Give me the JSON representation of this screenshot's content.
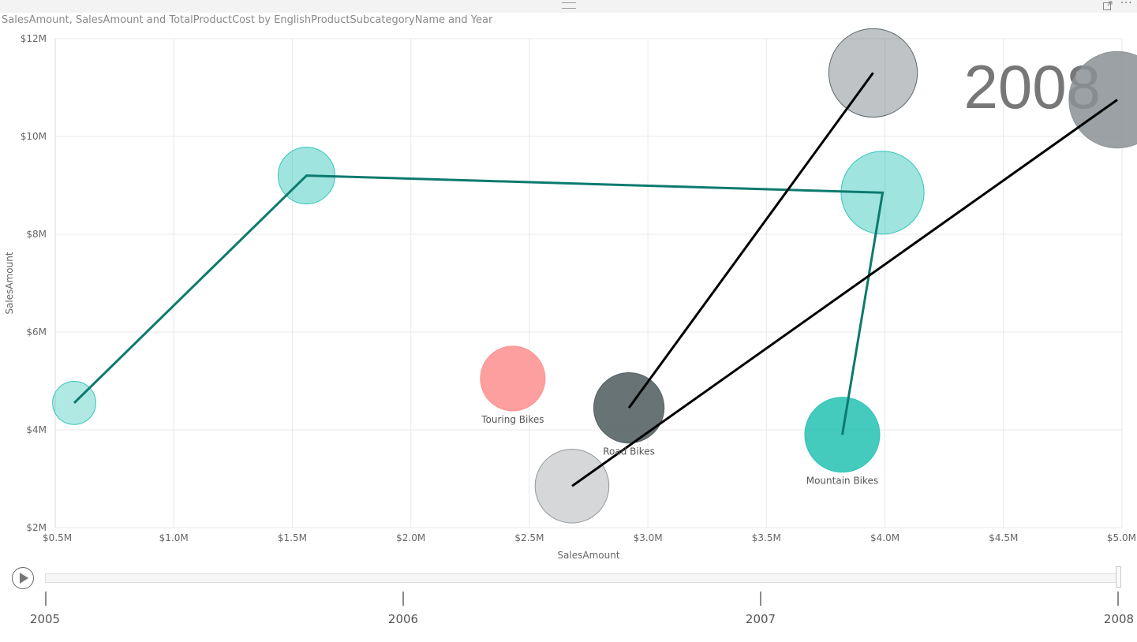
{
  "header": {
    "grip_icon": "drag-grip-icon",
    "focus_icon": "focus-mode-icon",
    "more_icon": "more-options-icon",
    "more_label": "···"
  },
  "chart_data": {
    "type": "scatter",
    "title": "SalesAmount, SalesAmount and TotalProductCost by EnglishProductSubcategoryName and Year",
    "xlabel": "SalesAmount",
    "ylabel": "SalesAmount",
    "xlim": [
      0.5,
      5.0
    ],
    "ylim": [
      2,
      12
    ],
    "x_ticks": [
      "$0.5M",
      "$1.0M",
      "$1.5M",
      "$2.0M",
      "$2.5M",
      "$3.0M",
      "$3.5M",
      "$4.0M",
      "$4.5M",
      "$5.0M"
    ],
    "y_ticks": [
      "$2M",
      "$4M",
      "$6M",
      "$8M",
      "$10M",
      "$12M"
    ],
    "grid": true,
    "play_axis_value": "2008",
    "size_field": "TotalProductCost",
    "series": [
      {
        "name": "Mountain Bikes",
        "color": "#24C1B3",
        "trail_color": "#0D7A6F",
        "label_visible": true,
        "points": [
          {
            "x": 0.58,
            "y": 4.55,
            "size": 0.38
          },
          {
            "x": 1.56,
            "y": 9.2,
            "size": 0.5
          },
          {
            "x": 3.99,
            "y": 8.85,
            "size": 0.73
          },
          {
            "x": 3.82,
            "y": 3.9,
            "size": 0.66
          }
        ]
      },
      {
        "name": "Road Bikes",
        "color": "#4D5A5E",
        "trail_color": "#000000",
        "label_visible": true,
        "points": [
          {
            "x": 3.95,
            "y": 11.3,
            "size": 0.78
          },
          {
            "x": 2.92,
            "y": 4.45,
            "size": 0.62
          }
        ]
      },
      {
        "name": "",
        "color": "#8A9094",
        "trail_color": "#000000",
        "label_visible": false,
        "points": [
          {
            "x": 2.68,
            "y": 2.85,
            "size": 0.65
          },
          {
            "x": 4.98,
            "y": 10.75,
            "size": 0.85
          }
        ]
      },
      {
        "name": "Touring Bikes",
        "color": "#FE8E8E",
        "trail_color": "",
        "label_visible": true,
        "points": [
          {
            "x": 2.43,
            "y": 5.05,
            "size": 0.57
          }
        ]
      }
    ]
  },
  "play_axis": {
    "play_icon": "play-icon",
    "years": [
      "2005",
      "2006",
      "2007",
      "2008"
    ],
    "current": "2008"
  }
}
